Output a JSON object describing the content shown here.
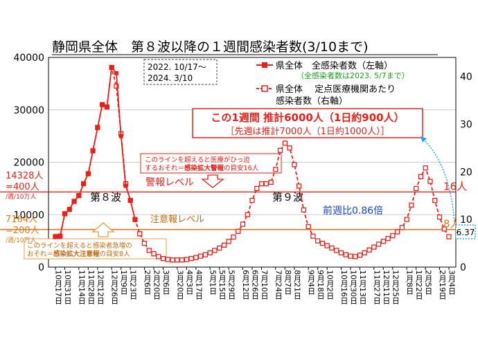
{
  "chart_data": {
    "type": "line",
    "title": "静岡県全体　第８波以降の１週間感染者数(3/10まで)",
    "period_label": [
      "2022. 10/17～",
      "2024. 3/10"
    ],
    "left_axis": {
      "ylim": [
        0,
        40000
      ],
      "ticks": [
        "0",
        "10000",
        "20000",
        "30000",
        "40000"
      ]
    },
    "right_axis": {
      "ylim": [
        0,
        44
      ],
      "ticks": [
        "0",
        "10",
        "20",
        "30",
        "40"
      ]
    },
    "legend": [
      {
        "label": "県全体　全感染者数（左軸）",
        "note": "（全感染者数は2023. 5/7まで）"
      },
      {
        "label": "県全体　 定点医療機関あたり",
        "label2": "感染者数（右軸）"
      }
    ],
    "x_tick_labels": [
      "10月17日",
      "10月31日",
      "11月14日",
      "11月28日",
      "12月12日",
      "12月26日",
      "1月9日",
      "1月23日",
      "2月6日",
      "2月20日",
      "3月6日",
      "3月20日",
      "4月3日",
      "4月17日",
      "5月1日",
      "5月15日",
      "5月29日",
      "6月12日",
      "6月26日",
      "7月10日",
      "7月24日",
      "8月7日",
      "8月21日",
      "9月4日",
      "9月18日",
      "10月2日",
      "10月16日",
      "10月30日",
      "11月13日",
      "11月27日",
      "12月11日",
      "12月25日",
      "1月8日",
      "1月22日",
      "2月5日",
      "2月19日",
      "3月4日"
    ],
    "series": [
      {
        "axis": "left",
        "color": "#e8201a",
        "style": "solid-filled-markers",
        "values": [
          5800,
          5900,
          10200,
          11000,
          12600,
          13600,
          15900,
          17800,
          22200,
          26600,
          31000,
          30500,
          38100,
          37000,
          25000,
          15500,
          12800,
          9000
        ]
      },
      {
        "axis": "right",
        "color": "#e8201a",
        "style": "dashed-open-markers",
        "values": [
          6.4,
          6.5,
          11.2,
          12.1,
          13.8,
          15.0,
          17.5,
          19.6,
          24.4,
          29.3,
          34.1,
          33.6,
          41.9,
          38.0,
          28.0,
          17.5,
          14.0,
          10.0,
          7.0,
          5.0,
          3.5,
          2.8,
          2.2,
          1.8,
          1.6,
          1.5,
          1.5,
          1.5,
          1.6,
          1.8,
          2.0,
          2.3,
          2.6,
          3.0,
          3.5,
          4.0,
          4.6,
          5.4,
          6.3,
          7.5,
          9.0,
          11.0,
          14.0,
          16.5,
          17.5,
          17.5,
          17.8,
          20.5,
          24.5,
          26.0,
          25.0,
          21.5,
          17.0,
          12.0,
          8.5,
          6.5,
          5.5,
          5.0,
          4.5,
          4.0,
          3.5,
          3.0,
          2.6,
          2.3,
          2.2,
          2.5,
          3.0,
          3.6,
          4.2,
          4.8,
          5.4,
          6.0,
          6.6,
          7.4,
          8.3,
          10.0,
          13.0,
          16.5,
          19.0,
          20.8,
          18.0,
          14.0,
          10.5,
          8.0,
          6.37
        ]
      }
    ],
    "reference_lines": [
      {
        "name": "警報レベル",
        "left_value": 14328,
        "color": "#e8201a",
        "left_label": [
          "14328人",
          "=400人",
          "/週/10万人"
        ],
        "right_label": "16人"
      },
      {
        "name": "注意報レベル",
        "left_value": 7164,
        "color": "#e07b1c",
        "left_label": [
          "7164人",
          "=200人",
          "/週/10万人"
        ],
        "right_label": "8人"
      }
    ],
    "annotations": {
      "summary_box": [
        "この1週間 推計6000人（1日約900人）",
        "［先週は推計7000人（1日約1000人）］"
      ],
      "alert_note": [
        "このラインを超えると医療がひっ迫",
        "するおそれ＝",
        "感染拡大警報",
        "の目安16人"
      ],
      "advisory_note": [
        "このラインを超えると感染者急増の",
        "おそれ＝",
        "感染拡大注意報",
        "の目安8人"
      ],
      "wave8": "第８波",
      "wave9": "第９波",
      "week_ratio": "前週比0.86倍",
      "alert_level": "警報レベル",
      "advisory_level": "注意報レベル",
      "latest_value": "6.37"
    }
  }
}
